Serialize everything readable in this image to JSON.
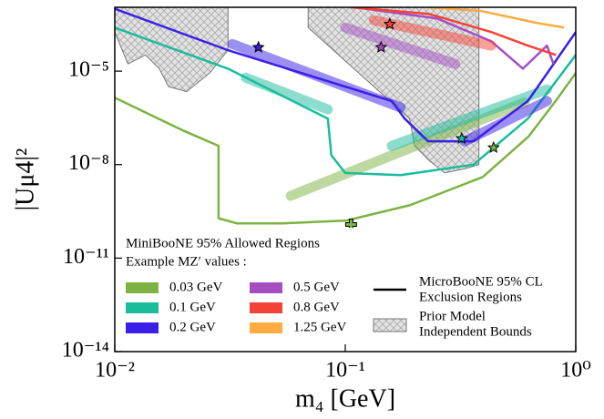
{
  "chart_data": {
    "type": "line",
    "x_label": "m₄ [GeV]",
    "y_label": "|Uμ4|²",
    "log_x": true,
    "log_y": true,
    "xlim": [
      0.01,
      1
    ],
    "ylim": [
      1e-14,
      0.00112
    ],
    "xticks": [
      {
        "value": 0.01,
        "label": "10⁻²"
      },
      {
        "value": 0.1,
        "label": "10⁻¹"
      },
      {
        "value": 1,
        "label": "10⁰"
      }
    ],
    "yticks": [
      {
        "value": 1e-14,
        "label": "10⁻¹⁴"
      },
      {
        "value": 1e-11,
        "label": "10⁻¹¹"
      },
      {
        "value": 1e-08,
        "label": "10⁻⁸"
      },
      {
        "value": 1e-05,
        "label": "10⁻⁵"
      }
    ],
    "legend_title": "MiniBooNE 95% Allowed Regions",
    "legend_subtitle": "Example MZ′ values :",
    "legend_exclusion": [
      "MicroBooNE 95% CL",
      "Exclusion Regions"
    ],
    "legend_bounds": [
      "Prior Model",
      "Independent Bounds"
    ],
    "prior_bounds": [
      {
        "x": [
          0.01,
          0.01,
          0.0114,
          0.0136,
          0.0156,
          0.0171,
          0.0205,
          0.0258,
          0.031,
          0.031
        ],
        "values": [
          0.00112,
          0.00018,
          1.7e-05,
          3.3e-05,
          1.2e-05,
          3.2e-06,
          2.2e-06,
          8.7e-06,
          4.7e-05,
          0.00112
        ]
      },
      {
        "x": [
          0.069,
          0.069,
          0.19,
          0.2,
          0.23,
          0.27,
          0.33,
          0.38,
          0.38
        ],
        "values": [
          0.00112,
          0.00025,
          3e-07,
          4e-08,
          1.4e-08,
          5.4e-09,
          7.4e-09,
          1e-08,
          0.00112
        ]
      }
    ],
    "series": [
      {
        "name": "0.03 GeV",
        "color": "#7cb342",
        "x": [
          0.01,
          0.02,
          0.0282,
          0.0282,
          0.0339,
          0.0533,
          0.101,
          0.191,
          0.395,
          0.622,
          0.818,
          1
        ],
        "values": [
          1.4e-06,
          1.2e-07,
          4e-08,
          1.9e-10,
          1.3e-10,
          1.3e-10,
          1.6e-10,
          5e-10,
          4e-09,
          7.8e-08,
          1.1e-06,
          8.7e-06
        ],
        "allowed": [
          {
            "x": [
              0.058,
              0.6
            ],
            "values": [
              1e-09,
              1e-06
            ]
          }
        ]
      },
      {
        "name": "0.1 GeV",
        "color": "#1abc9c",
        "x": [
          0.01,
          0.031,
          0.084,
          0.087,
          0.1,
          0.174,
          0.36,
          0.62,
          1
        ],
        "values": [
          0.00025,
          1.2e-05,
          3e-07,
          2e-08,
          5.4e-09,
          4.6e-09,
          1e-08,
          3e-07,
          3.3e-05
        ],
        "allowed": [
          {
            "x": [
              0.037,
              0.084
            ],
            "values": [
              6.2e-06,
              5.9e-07
            ]
          },
          {
            "x": [
              0.159,
              0.75
            ],
            "values": [
              4e-08,
              2.6e-06
            ]
          }
        ]
      },
      {
        "name": "0.2 GeV",
        "color": "#3a1fe8",
        "x": [
          0.01,
          0.031,
          0.159,
          0.181,
          0.229,
          0.36,
          0.62,
          1
        ],
        "values": [
          0.001,
          4.7e-05,
          1.1e-06,
          3e-07,
          5.6e-08,
          5.6e-08,
          1.1e-06,
          0.00018
        ],
        "allowed": [
          {
            "x": [
              0.0324,
              0.174
            ],
            "values": [
              7.4e-05,
              6.8e-07
            ]
          },
          {
            "x": [
              0.33,
              0.75
            ],
            "values": [
              5.6e-08,
              1.1e-06
            ]
          }
        ]
      },
      {
        "name": "0.5 GeV",
        "color": "#a64dc4",
        "x": [
          0.11,
          0.25,
          0.43,
          0.59,
          0.75,
          0.8
        ],
        "values": [
          0.00112,
          0.00049,
          9.1e-05,
          1.2e-05,
          6.6e-05,
          1.7e-05
        ],
        "allowed": [
          {
            "x": [
              0.1,
              0.3
            ],
            "values": [
              0.00025,
              1.7e-05
            ]
          }
        ]
      },
      {
        "name": "0.8 GeV",
        "color": "#f44336",
        "x": [
          0.106,
          0.23,
          0.43,
          0.62,
          0.82
        ],
        "values": [
          0.00112,
          0.00069,
          0.00018,
          6.6e-05,
          3.3e-05
        ],
        "allowed": [
          {
            "x": [
              0.133,
              0.43
            ],
            "values": [
              0.00043,
              6.6e-05
            ]
          }
        ]
      },
      {
        "name": "1.25 GeV",
        "color": "#ffab40",
        "x": [
          0.23,
          0.39,
          0.68,
          0.89
        ],
        "values": [
          0.00112,
          0.00085,
          0.00035,
          0.00025
        ],
        "allowed": []
      }
    ],
    "benchmarks": [
      {
        "x": 0.106,
        "y": 1.2e-10,
        "color": "#7cb342",
        "marker": "plus"
      },
      {
        "x": 0.042,
        "y": 5.8e-05,
        "color": "#3a1fe8",
        "marker": "star"
      },
      {
        "x": 0.143,
        "y": 5.8e-05,
        "color": "#a64dc4",
        "marker": "star"
      },
      {
        "x": 0.156,
        "y": 0.00032,
        "color": "#f44336",
        "marker": "star"
      },
      {
        "x": 0.32,
        "y": 6.9e-08,
        "color": "#1abc9c",
        "marker": "star"
      },
      {
        "x": 0.44,
        "y": 3.5e-08,
        "color": "#7cb342",
        "marker": "star"
      }
    ]
  }
}
